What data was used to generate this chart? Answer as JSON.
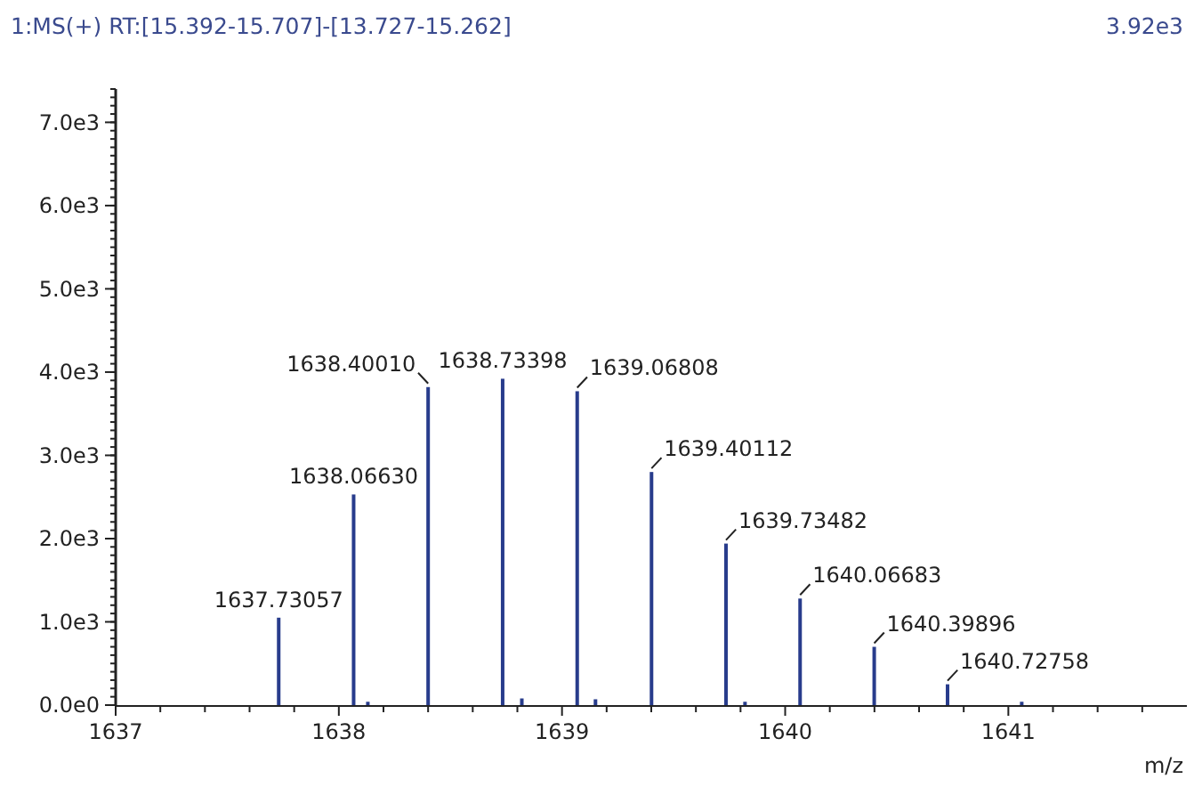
{
  "chart_data": {
    "type": "bar",
    "title": "1:MS(+) RT:[15.392-15.707]-[13.727-15.262]",
    "xlabel": "m/z",
    "x": [
      1637.73057,
      1638.0663,
      1638.13,
      1638.4001,
      1638.73398,
      1638.82,
      1639.06808,
      1639.15,
      1639.40112,
      1639.73482,
      1639.82,
      1640.06683,
      1640.39896,
      1640.72758,
      1641.06
    ],
    "values": [
      1050,
      2530,
      40,
      3820,
      3920,
      80,
      3770,
      70,
      2800,
      1940,
      40,
      1280,
      700,
      250,
      40
    ],
    "color": "#283c8c",
    "xlim": [
      1637,
      1641.8
    ],
    "xticks": [
      1637,
      {
        "value": 1637.2,
        "label": null
      },
      {
        "value": 1637.4,
        "label": null
      },
      {
        "value": 1637.6,
        "label": null
      },
      {
        "value": 1637.8,
        "label": null
      },
      1638,
      {
        "value": 1638.2,
        "label": null
      },
      {
        "value": 1638.4,
        "label": null
      },
      {
        "value": 1638.6,
        "label": null
      },
      {
        "value": 1638.8,
        "label": null
      },
      1639,
      {
        "value": 1639.2,
        "label": null
      },
      {
        "value": 1639.4,
        "label": null
      },
      {
        "value": 1639.6,
        "label": null
      },
      {
        "value": 1639.8,
        "label": null
      },
      1640,
      {
        "value": 1640.2,
        "label": null
      },
      {
        "value": 1640.4,
        "label": null
      },
      {
        "value": 1640.6,
        "label": null
      },
      {
        "value": 1640.8,
        "label": null
      },
      1641,
      {
        "value": 1641.2,
        "label": null
      },
      {
        "value": 1641.4,
        "label": null
      },
      {
        "value": 1641.6,
        "label": null
      }
    ],
    "ylim": [
      0,
      7400
    ],
    "yticks": [
      {
        "value": 0,
        "label": "0.0e0"
      },
      {
        "value": 1000,
        "label": "1.0e3"
      },
      {
        "value": 2000,
        "label": "2.0e3"
      },
      {
        "value": 3000,
        "label": "3.0e3"
      },
      {
        "value": 4000,
        "label": "4.0e3"
      },
      {
        "value": 5000,
        "label": "5.0e3"
      },
      {
        "value": 6000,
        "label": "6.0e3"
      },
      {
        "value": 7000,
        "label": "7.0e3"
      }
    ],
    "annotations": [
      {
        "text": "1637.73057",
        "x": 1637.73057,
        "y": 1050
      },
      {
        "text": "1638.06630",
        "x": 1638.0663,
        "y": 2530
      },
      {
        "text": "1638.40010",
        "x": 1638.4001,
        "y": 3820
      },
      {
        "text": "1638.73398",
        "x": 1638.73398,
        "y": 3920
      },
      {
        "text": "1639.06808",
        "x": 1639.06808,
        "y": 3770
      },
      {
        "text": "1639.40112",
        "x": 1639.40112,
        "y": 2800
      },
      {
        "text": "1639.73482",
        "x": 1639.73482,
        "y": 1940
      },
      {
        "text": "1640.06683",
        "x": 1640.06683,
        "y": 1280
      },
      {
        "text": "1640.39896",
        "x": 1640.39896,
        "y": 700
      },
      {
        "text": "1640.72758",
        "x": 1640.72758,
        "y": 250
      },
      "3.92e3"
    ],
    "grid": false
  }
}
